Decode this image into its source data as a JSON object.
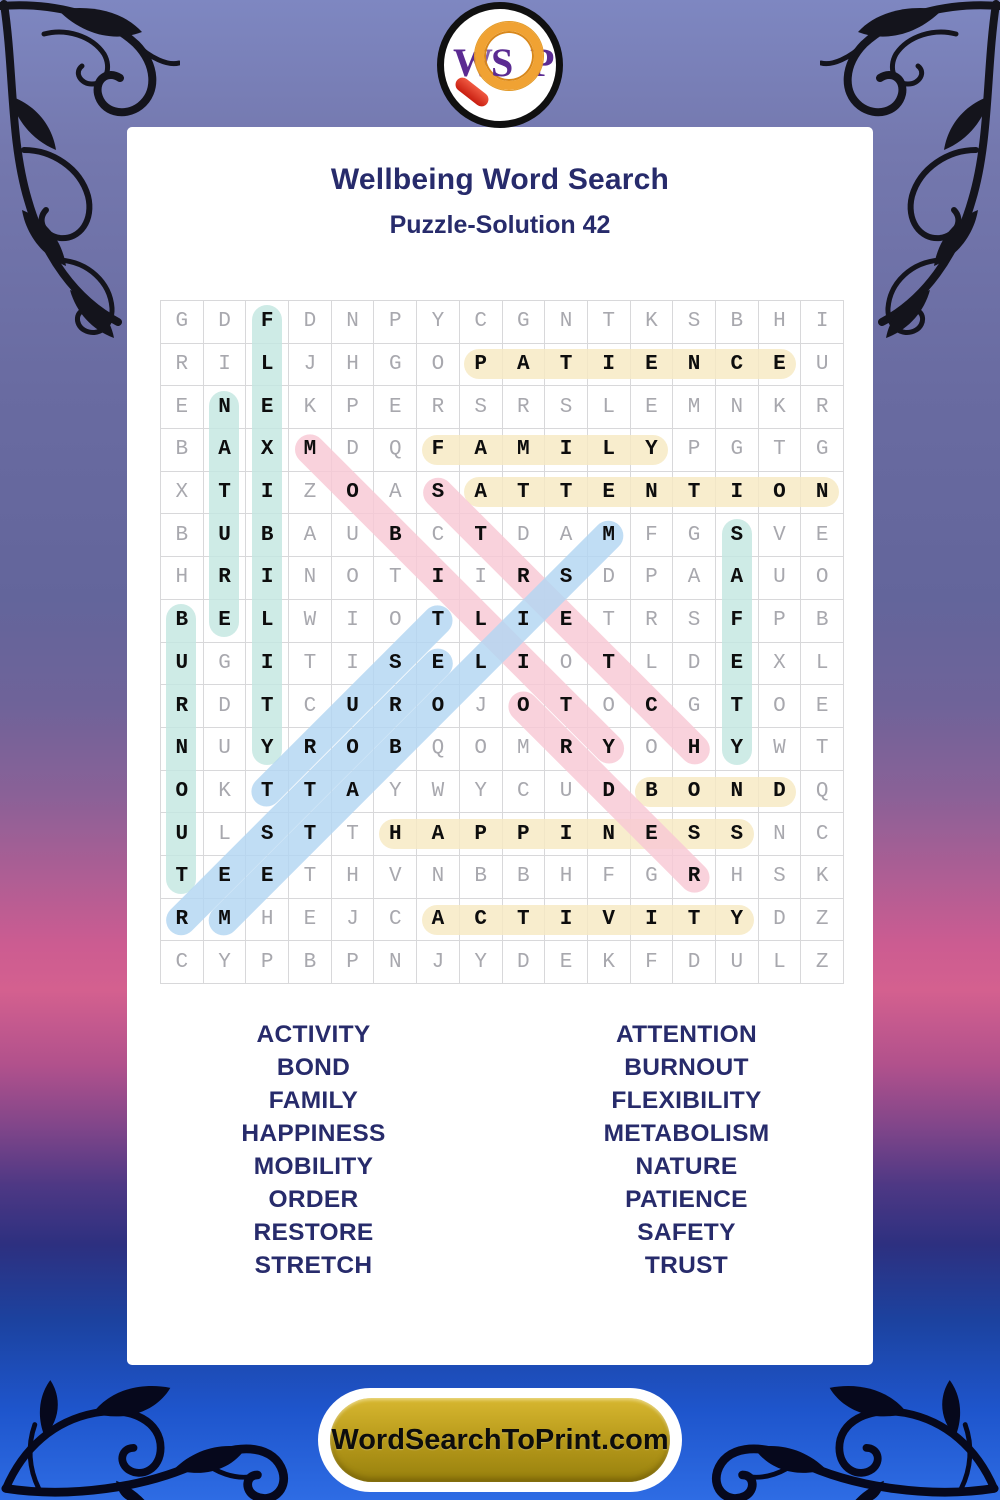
{
  "logo": {
    "letter_w": "W",
    "letter_s": "S",
    "letter_p": "P"
  },
  "header": {
    "title": "Wellbeing Word Search",
    "subtitle": "Puzzle-Solution 42"
  },
  "puzzle": {
    "grid_rows": [
      "GDFDNPYCGNTKSBHI",
      "RILJHGOPATIENCEU",
      "ENEKPERSRSLEMNKR",
      "BAXMDQFAMILYPGTG",
      "XTIZOASATTENTION",
      "BUBAUBCTDAMFGSVE",
      "HRINOTIIRSDPAAUO",
      "BELWIOTLIETRSFPB",
      "UGITISELIOTLDEXL",
      "RDTCUROJOTOCGTOE",
      "NUYROBQOMRYOHYWT",
      "OKTTAYWYCUDBONDQ",
      "ULSTTHAPPINESSNC",
      "TEETHVNBBHFGRHSK",
      "RMHEJCACTIVITYDZ",
      "CYPBPNJYDEKFDULZ"
    ],
    "palette": {
      "yellow": "#f7e9c2",
      "teal": "#c3e6e0",
      "blue": "#b2d5f2",
      "pink": "#f8c8d4"
    },
    "solutions": [
      {
        "word": "PATIENCE",
        "color": "yellow",
        "start": [
          2,
          8
        ],
        "end": [
          2,
          15
        ]
      },
      {
        "word": "FAMILY",
        "color": "yellow",
        "start": [
          4,
          7
        ],
        "end": [
          4,
          12
        ]
      },
      {
        "word": "ATTENTION",
        "color": "yellow",
        "start": [
          5,
          8
        ],
        "end": [
          5,
          16
        ]
      },
      {
        "word": "BOND",
        "color": "yellow",
        "start": [
          12,
          12
        ],
        "end": [
          12,
          15
        ]
      },
      {
        "word": "HAPPINESS",
        "color": "yellow",
        "start": [
          13,
          6
        ],
        "end": [
          13,
          14
        ]
      },
      {
        "word": "ACTIVITY",
        "color": "yellow",
        "start": [
          15,
          7
        ],
        "end": [
          15,
          14
        ]
      },
      {
        "word": "FLEXIBILITY",
        "color": "teal",
        "start": [
          1,
          3
        ],
        "end": [
          11,
          3
        ]
      },
      {
        "word": "NATURE",
        "color": "teal",
        "start": [
          3,
          2
        ],
        "end": [
          8,
          2
        ]
      },
      {
        "word": "BURNOUT",
        "color": "teal",
        "start": [
          8,
          1
        ],
        "end": [
          14,
          1
        ]
      },
      {
        "word": "SAFETY",
        "color": "teal",
        "start": [
          6,
          14
        ],
        "end": [
          11,
          14
        ]
      },
      {
        "word": "MOBILITY",
        "color": "pink",
        "start": [
          4,
          4
        ],
        "end": [
          11,
          11
        ]
      },
      {
        "word": "STRETCH",
        "color": "pink",
        "start": [
          5,
          7
        ],
        "end": [
          11,
          13
        ]
      },
      {
        "word": "ORDER",
        "color": "pink",
        "start": [
          10,
          9
        ],
        "end": [
          14,
          13
        ]
      },
      {
        "word": "RESTORE",
        "color": "blue",
        "start": [
          15,
          1
        ],
        "end": [
          9,
          7
        ]
      },
      {
        "word": "METABOLISM",
        "color": "blue",
        "start": [
          15,
          2
        ],
        "end": [
          6,
          11
        ]
      },
      {
        "word": "TRUST",
        "color": "blue",
        "start": [
          12,
          3
        ],
        "end": [
          8,
          7
        ]
      }
    ]
  },
  "word_list": {
    "left": [
      "ACTIVITY",
      "BOND",
      "FAMILY",
      "HAPPINESS",
      "MOBILITY",
      "ORDER",
      "RESTORE",
      "STRETCH"
    ],
    "right": [
      "ATTENTION",
      "BURNOUT",
      "FLEXIBILITY",
      "METABOLISM",
      "NATURE",
      "PATIENCE",
      "SAFETY",
      "TRUST"
    ]
  },
  "footer": {
    "button_label": "WordSearchToPrint.com"
  }
}
